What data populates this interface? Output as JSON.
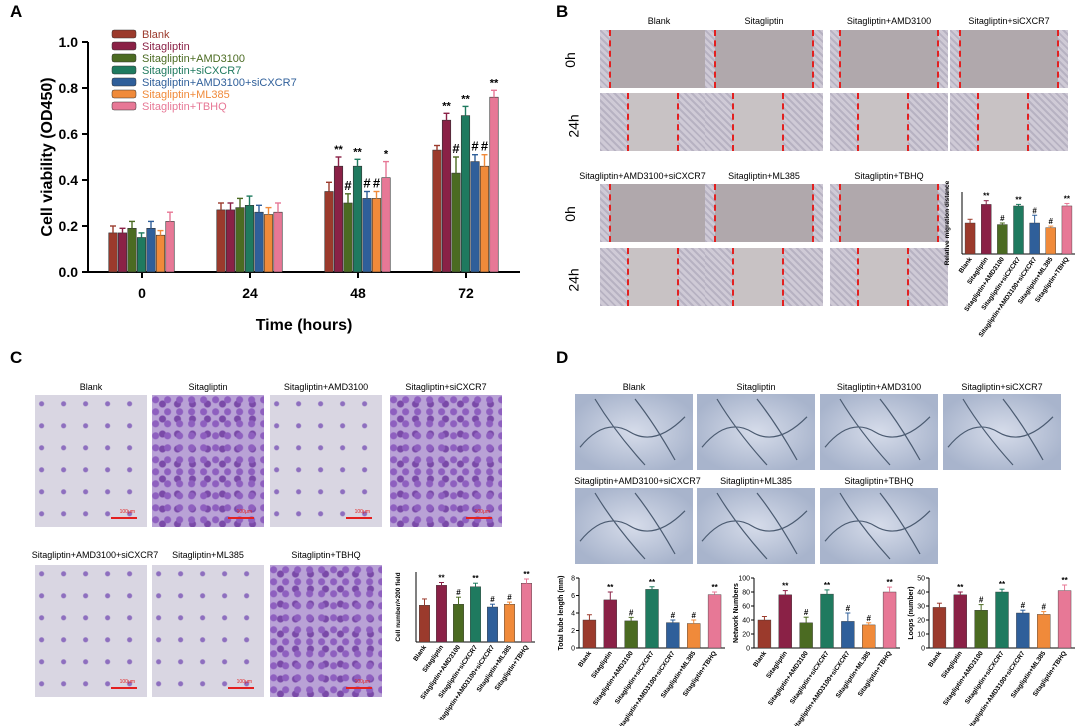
{
  "panels": {
    "a": "A",
    "b": "B",
    "c": "C",
    "d": "D"
  },
  "colors": {
    "Blank": "#9b3a2c",
    "Sitagliptin": "#8a2146",
    "Sitagliptin+AMD3100": "#4b6b22",
    "Sitagliptin+siCXCR7": "#1f7a5f",
    "Sitagliptin+AMD3100+siCXCR7": "#2f5f9a",
    "Sitagliptin+ML385": "#f08a3a",
    "Sitagliptin+TBHQ": "#e77896"
  },
  "chart_data": [
    {
      "id": "A",
      "type": "bar",
      "title": "",
      "xlabel": "Time (hours)",
      "ylabel": "Cell viability (OD450)",
      "ylim": [
        0,
        1.0
      ],
      "yticks": [
        "0.0",
        "0.2",
        "0.4",
        "0.6",
        "0.8",
        "1.0"
      ],
      "categories": [
        "0",
        "24",
        "48",
        "72"
      ],
      "legend": [
        "Blank",
        "Sitagliptin",
        "Sitagliptin+AMD3100",
        "Sitagliptin+siCXCR7",
        "Sitagliptin+AMD3100+siCXCR7",
        "Sitagliptin+ML385",
        "Sitagliptin+TBHQ"
      ],
      "series": [
        {
          "name": "Blank",
          "values": [
            0.17,
            0.27,
            0.35,
            0.53
          ],
          "err": [
            0.03,
            0.03,
            0.04,
            0.02
          ],
          "marks": [
            "",
            "",
            "",
            ""
          ]
        },
        {
          "name": "Sitagliptin",
          "values": [
            0.17,
            0.27,
            0.46,
            0.66
          ],
          "err": [
            0.02,
            0.03,
            0.04,
            0.03
          ],
          "marks": [
            "",
            "",
            "**",
            "**"
          ]
        },
        {
          "name": "Sitagliptin+AMD3100",
          "values": [
            0.19,
            0.28,
            0.3,
            0.43
          ],
          "err": [
            0.03,
            0.04,
            0.04,
            0.07
          ],
          "marks": [
            "",
            "",
            "#",
            "#"
          ]
        },
        {
          "name": "Sitagliptin+siCXCR7",
          "values": [
            0.15,
            0.29,
            0.46,
            0.68
          ],
          "err": [
            0.02,
            0.04,
            0.03,
            0.04
          ],
          "marks": [
            "",
            "",
            "**",
            "**"
          ]
        },
        {
          "name": "Sitagliptin+AMD3100+siCXCR7",
          "values": [
            0.19,
            0.26,
            0.32,
            0.48
          ],
          "err": [
            0.03,
            0.03,
            0.03,
            0.03
          ],
          "marks": [
            "",
            "",
            "#",
            "#"
          ]
        },
        {
          "name": "Sitagliptin+ML385",
          "values": [
            0.16,
            0.25,
            0.32,
            0.46
          ],
          "err": [
            0.02,
            0.03,
            0.03,
            0.05
          ],
          "marks": [
            "",
            "",
            "#",
            "#"
          ]
        },
        {
          "name": "Sitagliptin+TBHQ",
          "values": [
            0.22,
            0.26,
            0.41,
            0.76
          ],
          "err": [
            0.04,
            0.04,
            0.07,
            0.03
          ],
          "marks": [
            "",
            "",
            "*",
            "**"
          ]
        }
      ]
    },
    {
      "id": "B",
      "type": "bar",
      "title": "",
      "ylabel": "Relative migration distance",
      "ylim": [
        0,
        2
      ],
      "categories": [
        "Blank",
        "Sitagliptin",
        "Sitagliptin+AMD3100",
        "Sitagliptin+siCXCR7",
        "Sitagliptin+AMD3100+siCXCR7",
        "Sitagliptin+ML385",
        "Sitagliptin+TBHQ"
      ],
      "values": [
        1.0,
        1.6,
        0.95,
        1.55,
        1.0,
        0.85,
        1.55
      ],
      "err": [
        0.12,
        0.12,
        0.05,
        0.05,
        0.25,
        0.05,
        0.08
      ],
      "marks": [
        "",
        "**",
        "#",
        "**",
        "#",
        "#",
        "**"
      ]
    },
    {
      "id": "C",
      "type": "bar",
      "title": "",
      "ylabel": "Cell number/×200 field",
      "ylim": [
        0,
        200
      ],
      "categories": [
        "Blank",
        "Sitagliptin",
        "Sitagliptin+AMD3100",
        "Sitagliptin+siCXCR7",
        "Sitagliptin+AMD3100+siCXCR7",
        "Sitagliptin+ML385",
        "Sitagliptin+TBHQ"
      ],
      "values": [
        105,
        162,
        108,
        158,
        100,
        108,
        168
      ],
      "err": [
        18,
        8,
        20,
        10,
        8,
        6,
        12
      ],
      "marks": [
        "",
        "**",
        "#",
        "**",
        "#",
        "#",
        "**"
      ]
    },
    {
      "id": "D1",
      "type": "bar",
      "title": "",
      "ylabel": "Total tube length (mm)",
      "ylim": [
        0,
        8
      ],
      "yticks": [
        "0",
        "2",
        "4",
        "6",
        "8"
      ],
      "categories": [
        "Blank",
        "Sitagliptin",
        "Sitagliptin+AMD3100",
        "Sitagliptin+siCXCR7",
        "Sitagliptin+AMD3100+siCXCR7",
        "Sitagliptin+ML385",
        "Sitagliptin+TBHQ"
      ],
      "values": [
        3.2,
        5.5,
        3.1,
        6.7,
        2.9,
        2.8,
        6.1
      ],
      "err": [
        0.6,
        0.9,
        0.4,
        0.3,
        0.3,
        0.4,
        0.3
      ],
      "marks": [
        "",
        "**",
        "#",
        "**",
        "#",
        "#",
        "**"
      ]
    },
    {
      "id": "D2",
      "type": "bar",
      "title": "",
      "ylabel": "Network Numbers",
      "ylim": [
        0,
        100
      ],
      "yticks": [
        "0",
        "20",
        "40",
        "60",
        "80",
        "100"
      ],
      "categories": [
        "Blank",
        "Sitagliptin",
        "Sitagliptin+AMD3100",
        "Sitagliptin+siCXCR7",
        "Sitagliptin+AMD3100+siCXCR7",
        "Sitagliptin+ML385",
        "Sitagliptin+TBHQ"
      ],
      "values": [
        40,
        76,
        36,
        77,
        38,
        33,
        80
      ],
      "err": [
        5,
        6,
        8,
        6,
        12,
        3,
        7
      ],
      "marks": [
        "",
        "**",
        "#",
        "**",
        "#",
        "#",
        "**"
      ]
    },
    {
      "id": "D3",
      "type": "bar",
      "title": "",
      "ylabel": "Loops (number)",
      "ylim": [
        0,
        50
      ],
      "yticks": [
        "0",
        "10",
        "20",
        "30",
        "40",
        "50"
      ],
      "categories": [
        "Blank",
        "Sitagliptin",
        "Sitagliptin+AMD3100",
        "Sitagliptin+siCXCR7",
        "Sitagliptin+AMD3100+siCXCR7",
        "Sitagliptin+ML385",
        "Sitagliptin+TBHQ"
      ],
      "values": [
        29,
        38,
        27,
        40,
        25,
        24,
        41
      ],
      "err": [
        3,
        2,
        4,
        2,
        2,
        2,
        4
      ],
      "marks": [
        "",
        "**",
        "#",
        "**",
        "#",
        "#",
        "**"
      ]
    }
  ],
  "scratch": {
    "row_labels": [
      "0h",
      "24h"
    ],
    "top_titles": [
      "Blank",
      "Sitagliptin",
      "Sitagliptin+AMD3100",
      "Sitagliptin+siCXCR7"
    ],
    "bottom_titles": [
      "Sitagliptin+AMD3100+siCXCR7",
      "Sitagliptin+ML385",
      "Sitagliptin+TBHQ"
    ]
  },
  "transwell": {
    "top_titles": [
      "Blank",
      "Sitagliptin",
      "Sitagliptin+AMD3100",
      "Sitagliptin+siCXCR7"
    ],
    "bottom_titles": [
      "Sitagliptin+AMD3100+siCXCR7",
      "Sitagliptin+ML385",
      "Sitagliptin+TBHQ"
    ],
    "scale_label": "100μm"
  },
  "tube": {
    "top_titles": [
      "Blank",
      "Sitagliptin",
      "Sitagliptin+AMD3100",
      "Sitagliptin+siCXCR7"
    ],
    "bottom_titles": [
      "Sitagliptin+AMD3100+siCXCR7",
      "Sitagliptin+ML385",
      "Sitagliptin+TBHQ"
    ]
  }
}
